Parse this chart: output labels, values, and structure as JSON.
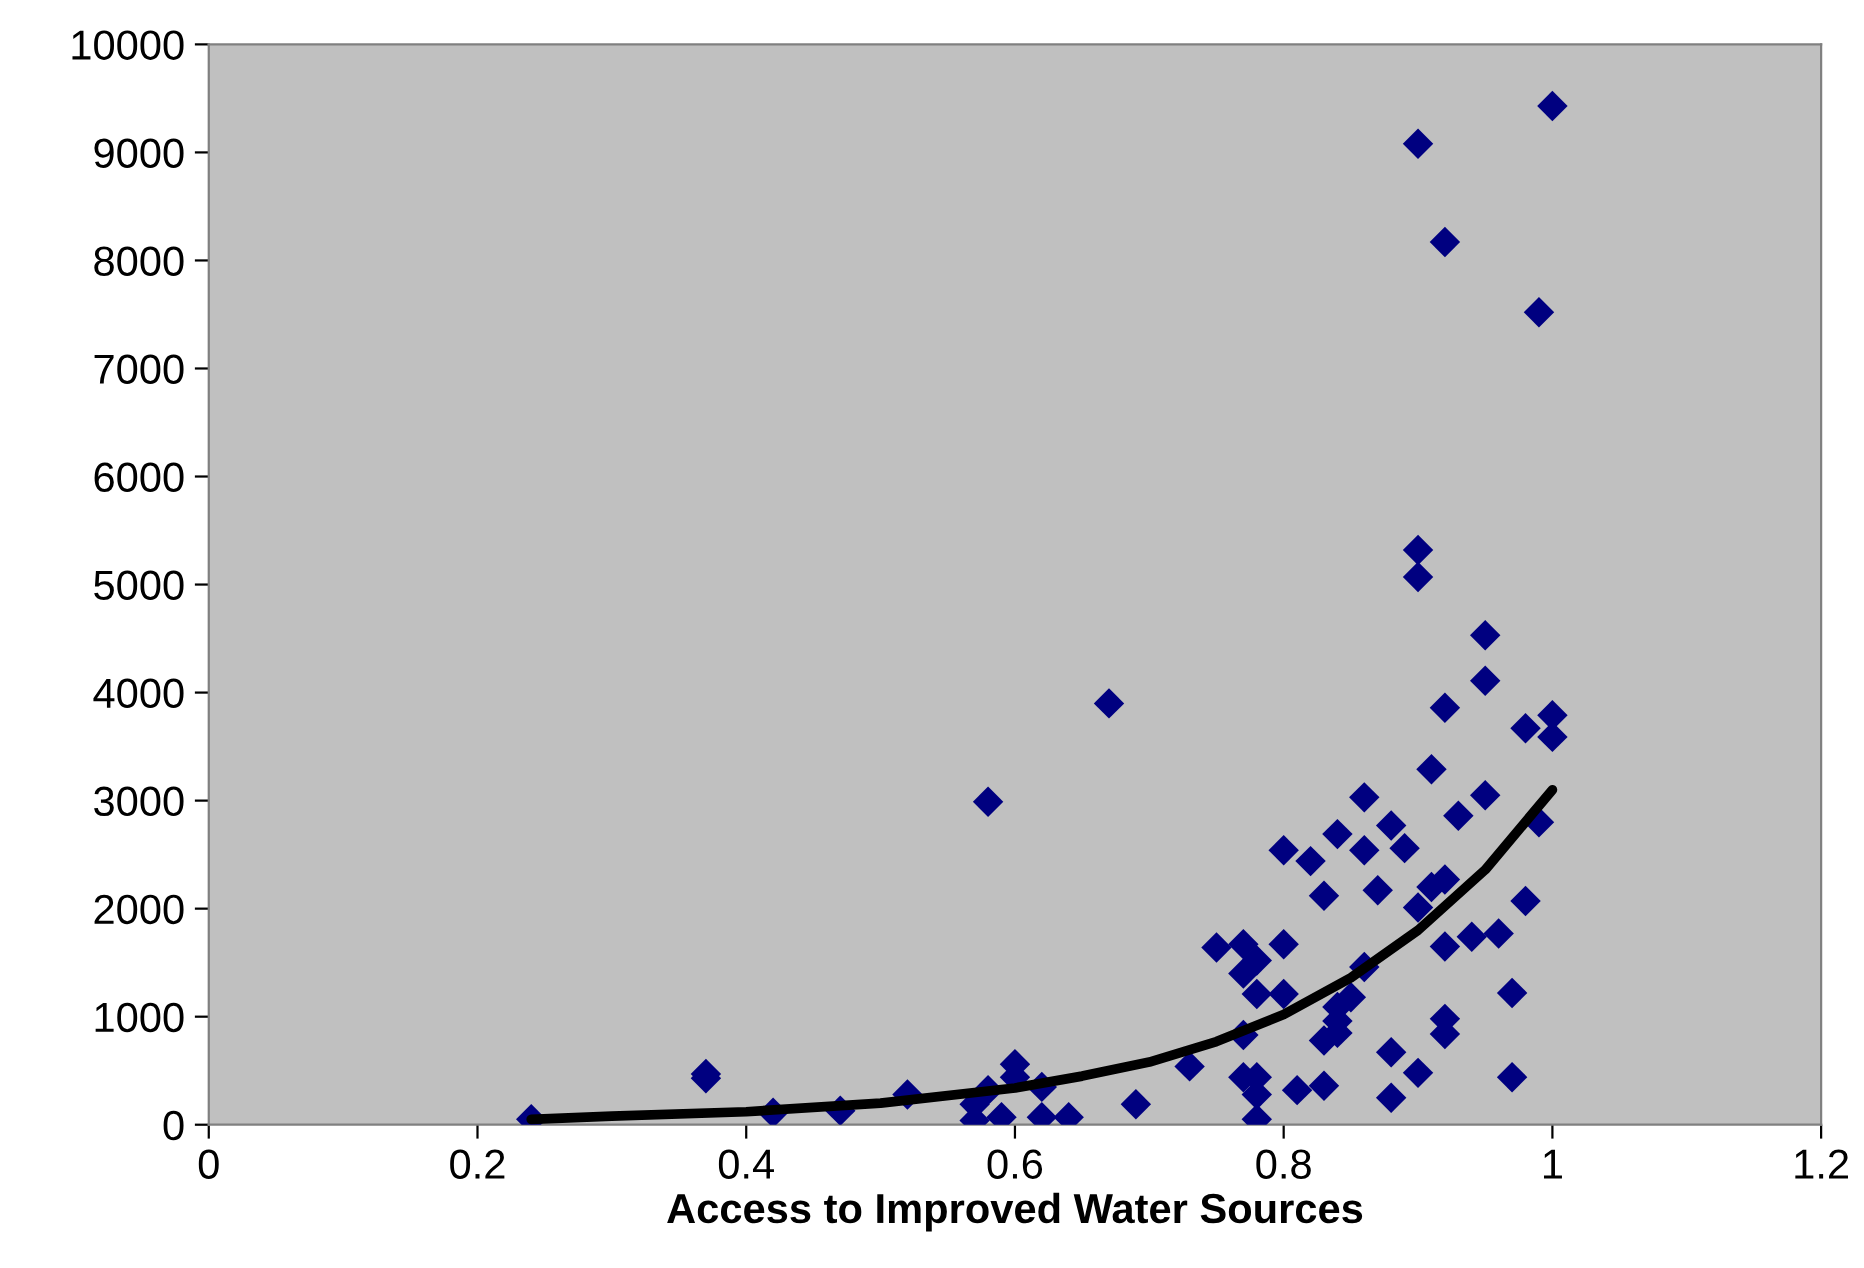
{
  "chart_data": {
    "type": "scatter",
    "xlabel": "Access to Improved Water Sources",
    "xlim": [
      0,
      1.2
    ],
    "xticks": [
      0,
      0.2,
      0.4,
      0.6,
      0.8,
      1,
      1.2
    ],
    "ylim": [
      0,
      10000
    ],
    "yticks": [
      0,
      1000,
      2000,
      3000,
      4000,
      5000,
      6000,
      7000,
      8000,
      9000,
      10000
    ],
    "grid": false,
    "legend": false,
    "marker": "diamond",
    "series": [
      {
        "color": "#000080",
        "x": [
          0.24,
          0.37,
          0.37,
          0.42,
          0.47,
          0.52,
          0.58,
          0.67,
          0.57,
          0.58,
          0.57,
          0.59,
          0.6,
          0.6,
          0.62,
          0.62,
          0.64,
          0.95,
          0.95,
          0.92,
          0.98,
          1.0,
          1.0,
          0.91,
          0.95,
          0.86,
          0.93,
          0.99,
          0.84,
          0.88,
          0.8,
          0.82,
          0.86,
          0.89,
          0.83,
          0.87,
          0.91,
          0.92,
          0.9,
          0.98,
          0.75,
          0.77,
          0.8,
          0.78,
          0.77,
          0.78,
          0.8,
          0.92,
          0.94,
          0.96,
          0.86,
          0.85,
          0.84,
          0.84,
          0.97,
          0.83,
          0.84,
          0.92,
          0.92,
          0.88,
          0.9,
          0.97,
          0.81,
          0.83,
          0.88,
          0.73,
          0.69,
          0.77,
          0.77,
          0.78,
          0.78,
          0.78,
          1.0,
          0.9,
          0.92,
          0.99,
          0.9,
          0.9
        ],
        "values": [
          50,
          470,
          430,
          110,
          130,
          280,
          2990,
          3900,
          190,
          320,
          40,
          70,
          560,
          440,
          350,
          70,
          70,
          4530,
          4110,
          3860,
          3670,
          3790,
          3590,
          3290,
          3050,
          3030,
          2860,
          2800,
          2690,
          2770,
          2540,
          2440,
          2540,
          2560,
          2120,
          2170,
          2200,
          2270,
          2010,
          2070,
          1640,
          1670,
          1670,
          1520,
          1400,
          1210,
          1210,
          1650,
          1740,
          1770,
          1460,
          1180,
          1090,
          960,
          1220,
          780,
          850,
          980,
          840,
          670,
          480,
          440,
          320,
          360,
          250,
          540,
          190,
          830,
          440,
          440,
          280,
          50,
          9430,
          9080,
          8170,
          7520,
          5320,
          5070
        ]
      },
      {
        "type": "line",
        "color": "#000000",
        "marker": "none",
        "line_style": "solid",
        "x": [
          0.24,
          0.3,
          0.4,
          0.5,
          0.6,
          0.65,
          0.7,
          0.75,
          0.8,
          0.85,
          0.9,
          0.95,
          1.0
        ],
        "values": [
          50,
          80,
          120,
          200,
          340,
          450,
          580,
          770,
          1020,
          1360,
          1800,
          2360,
          3100
        ]
      }
    ]
  }
}
